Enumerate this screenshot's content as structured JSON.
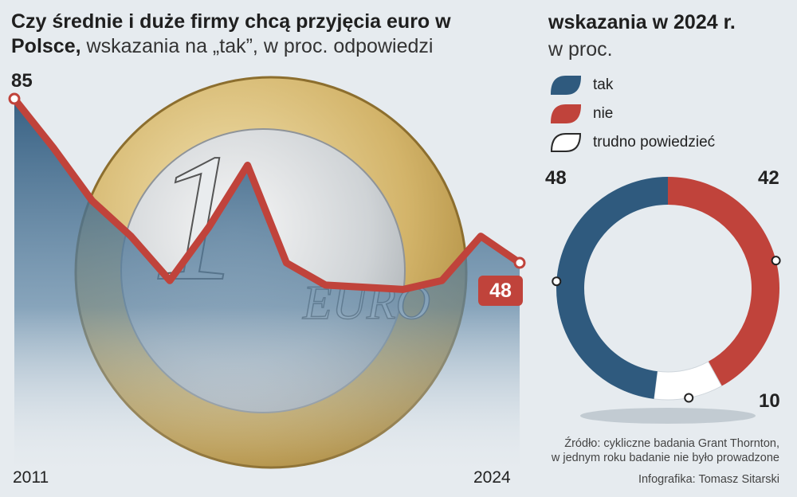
{
  "left": {
    "title_bold": "Czy średnie i duże firmy chcą przyjęcia euro w Polsce,",
    "title_light": " wskazania na „tak”, w proc. odpowiedzi",
    "start_value": "85",
    "end_value": "48",
    "year_start": "2011",
    "year_end": "2024"
  },
  "right": {
    "title": "wskazania w 2024 r.",
    "subtitle": "w proc.",
    "legend": [
      {
        "label": "tak",
        "color": "#2f5a7e"
      },
      {
        "label": "nie",
        "color": "#c0433b"
      },
      {
        "label": "trudno powiedzieć",
        "color": "#ffffff"
      }
    ],
    "label_tak": "48",
    "label_nie": "42",
    "label_trudno": "10"
  },
  "source": "Źródło: cykliczne badania Grant Thornton, w jednym roku badanie nie było prowadzone",
  "source_line1": "Źródło: cykliczne badania Grant Thornton,",
  "source_line2": "w jednym roku badanie nie było prowadzone",
  "credit": "Infografika: Tomasz Sitarski",
  "chart_data": [
    {
      "type": "line",
      "x": [
        2011,
        2012,
        2013,
        2014,
        2015,
        2016,
        2017,
        2018,
        2019,
        2021,
        2022,
        2023,
        2024
      ],
      "series": [
        {
          "values": [
            85,
            74,
            62,
            54,
            44,
            56,
            70,
            48,
            43,
            42,
            44,
            54,
            48
          ]
        }
      ],
      "colors": {
        "line": "#c0433b",
        "area": "#2f5a7e"
      }
    },
    {
      "type": "pie",
      "donut": true,
      "categories": [
        "tak",
        "nie",
        "trudno powiedzieć"
      ],
      "values": [
        48,
        42,
        10
      ],
      "colors": [
        "#2f5a7e",
        "#c0433b",
        "#ffffff"
      ]
    }
  ]
}
